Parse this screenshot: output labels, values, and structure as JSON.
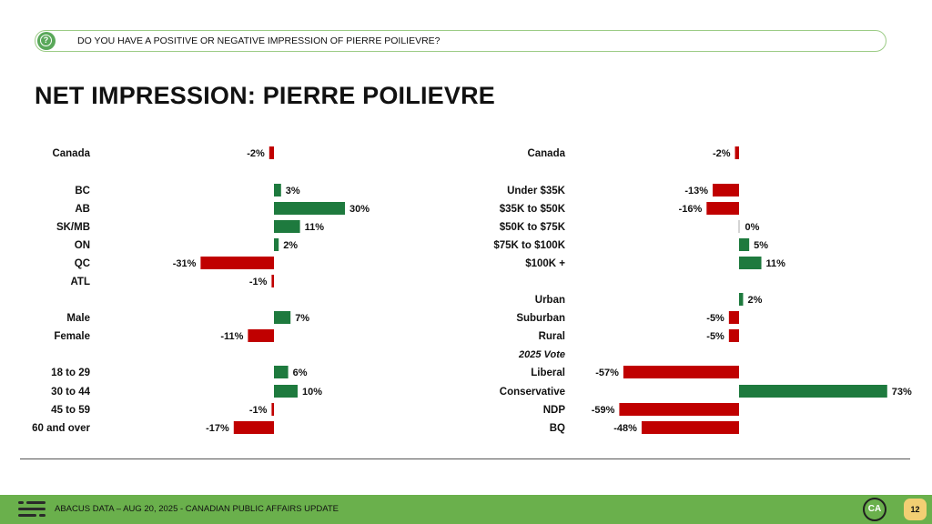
{
  "question": "DO YOU HAVE A POSITIVE OR NEGATIVE IMPRESSION OF PIERRE POILIEVRE?",
  "title": "NET IMPRESSION: PIERRE POILIEVRE",
  "footer": {
    "source": "ABACUS DATA – AUG 20, 2025 - CANADIAN PUBLIC AFFAIRS UPDATE",
    "logo_text": "CA",
    "page_number": "12"
  },
  "icons": {
    "question": "question-mark-icon",
    "brand": "abacus-logo-icon"
  },
  "colors": {
    "positive": "#1e7a3e",
    "negative": "#c00000",
    "accent": "#6ab04c"
  },
  "chart_data": [
    {
      "type": "bar",
      "orientation": "horizontal",
      "title": "",
      "unit": "%",
      "rows": [
        {
          "label": "Canada",
          "value": -2
        },
        {
          "label": "BC",
          "value": 3
        },
        {
          "label": "AB",
          "value": 30
        },
        {
          "label": "SK/MB",
          "value": 11
        },
        {
          "label": "ON",
          "value": 2
        },
        {
          "label": "QC",
          "value": -31
        },
        {
          "label": "ATL",
          "value": -1
        },
        {
          "label": "Male",
          "value": 7
        },
        {
          "label": "Female",
          "value": -11
        },
        {
          "label": "18 to 29",
          "value": 6
        },
        {
          "label": "30 to 44",
          "value": 10
        },
        {
          "label": "45 to 59",
          "value": -1
        },
        {
          "label": "60 and over",
          "value": -17
        }
      ]
    },
    {
      "type": "bar",
      "orientation": "horizontal",
      "title": "",
      "unit": "%",
      "rows": [
        {
          "label": "Canada",
          "value": -2
        },
        {
          "label": "Under $35K",
          "value": -13
        },
        {
          "label": "$35K to $50K",
          "value": -16
        },
        {
          "label": "$50K to $75K",
          "value": 0
        },
        {
          "label": "$75K to $100K",
          "value": 5
        },
        {
          "label": "$100K +",
          "value": 11
        },
        {
          "label": "Urban",
          "value": 2
        },
        {
          "label": "Suburban",
          "value": -5
        },
        {
          "label": "Rural",
          "value": -5
        },
        {
          "label": "Liberal",
          "value": -57
        },
        {
          "label": "Conservative",
          "value": 73
        },
        {
          "label": "NDP",
          "value": -59
        },
        {
          "label": "BQ",
          "value": -48
        }
      ],
      "group_labels": [
        {
          "before_row": 9,
          "text": "2025 Vote"
        }
      ]
    }
  ]
}
